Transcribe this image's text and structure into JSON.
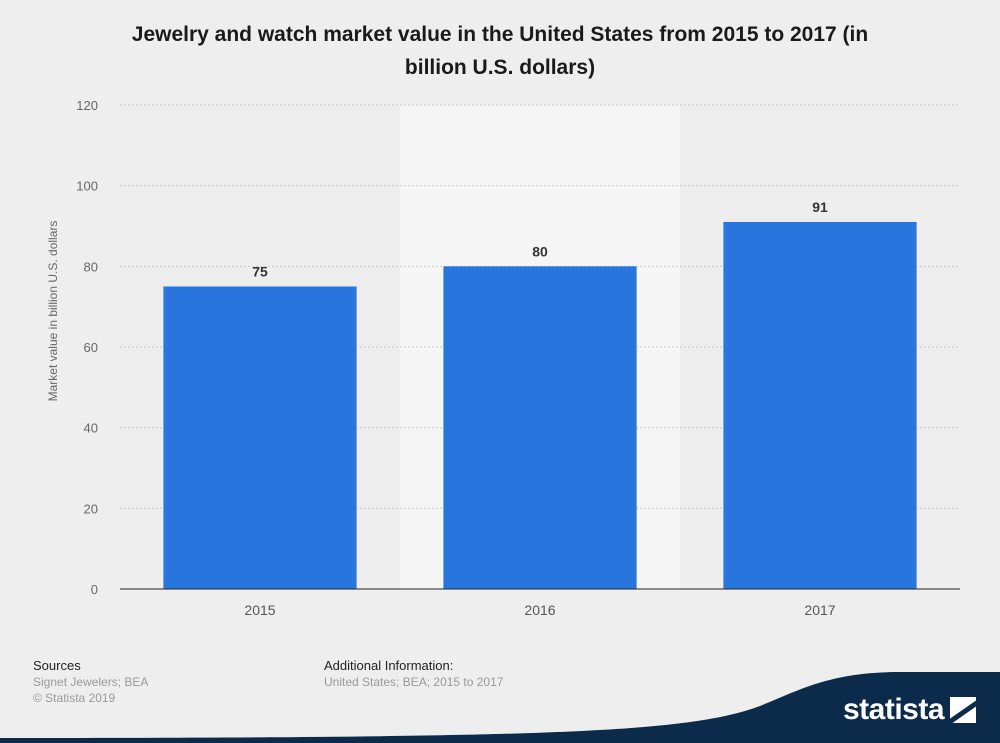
{
  "chart_data": {
    "type": "bar",
    "title": "Jewelry and watch market value in the United States from 2015 to 2017 (in billion U.S. dollars)",
    "categories": [
      "2015",
      "2016",
      "2017"
    ],
    "values": [
      75,
      80,
      91
    ],
    "data_labels": [
      "75",
      "80",
      "91"
    ],
    "xlabel": "",
    "ylabel": "Market value in billion U.S. dollars",
    "ylim": [
      0,
      120
    ],
    "yticks": [
      "0",
      "20",
      "40",
      "60",
      "80",
      "100",
      "120"
    ],
    "grid": true,
    "bar_color": "#2876dd"
  },
  "footer": {
    "sources_heading": "Sources",
    "sources_text": "Signet Jewelers; BEA",
    "copyright": "© Statista 2019",
    "additional_heading": "Additional Information:",
    "additional_text": "United States; BEA; 2015 to 2017"
  },
  "brand": {
    "name": "statista",
    "band_color": "#0c2a4a"
  }
}
